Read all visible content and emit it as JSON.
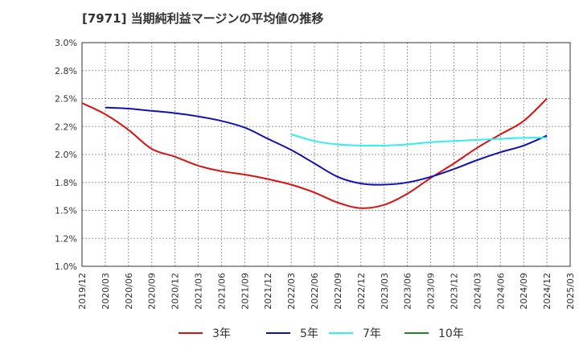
{
  "chart_data": {
    "type": "line",
    "title": "[7971]  当期純利益マージンの平均値の推移",
    "x": [
      "2019/12",
      "2020/03",
      "2020/06",
      "2020/09",
      "2020/12",
      "2021/03",
      "2021/06",
      "2021/09",
      "2021/12",
      "2022/03",
      "2022/06",
      "2022/09",
      "2022/12",
      "2023/03",
      "2023/06",
      "2023/09",
      "2023/12",
      "2024/03",
      "2024/06",
      "2024/09",
      "2024/12",
      "2025/03"
    ],
    "y_ticks": [
      "1.0%",
      "1.2%",
      "1.5%",
      "1.8%",
      "2.0%",
      "2.2%",
      "2.5%",
      "2.8%",
      "3.0%"
    ],
    "ylim": [
      1.0,
      3.0
    ],
    "grid": true,
    "legend_position": "bottom",
    "series": [
      {
        "name": "3年",
        "color": "#dd1111",
        "values": [
          2.46,
          2.36,
          2.22,
          2.05,
          1.98,
          1.9,
          1.85,
          1.82,
          1.78,
          1.73,
          1.66,
          1.57,
          1.52,
          1.55,
          1.65,
          1.79,
          1.92,
          2.06,
          2.18,
          2.3,
          2.5,
          null
        ]
      },
      {
        "name": "5年",
        "color": "#1111bb",
        "values": [
          null,
          2.42,
          2.41,
          2.39,
          2.37,
          2.34,
          2.3,
          2.24,
          2.14,
          2.04,
          1.92,
          1.8,
          1.74,
          1.73,
          1.75,
          1.8,
          1.87,
          1.95,
          2.02,
          2.08,
          2.17,
          null
        ]
      },
      {
        "name": "7年",
        "color": "#33eeee",
        "values": [
          null,
          null,
          null,
          null,
          null,
          null,
          null,
          null,
          null,
          2.18,
          2.12,
          2.09,
          2.08,
          2.08,
          2.09,
          2.11,
          2.12,
          2.13,
          2.14,
          2.15,
          2.15,
          null
        ]
      },
      {
        "name": "10年",
        "color": "#228822",
        "values": [
          null,
          null,
          null,
          null,
          null,
          null,
          null,
          null,
          null,
          null,
          null,
          null,
          null,
          null,
          null,
          null,
          null,
          null,
          null,
          null,
          null,
          null
        ]
      }
    ]
  }
}
